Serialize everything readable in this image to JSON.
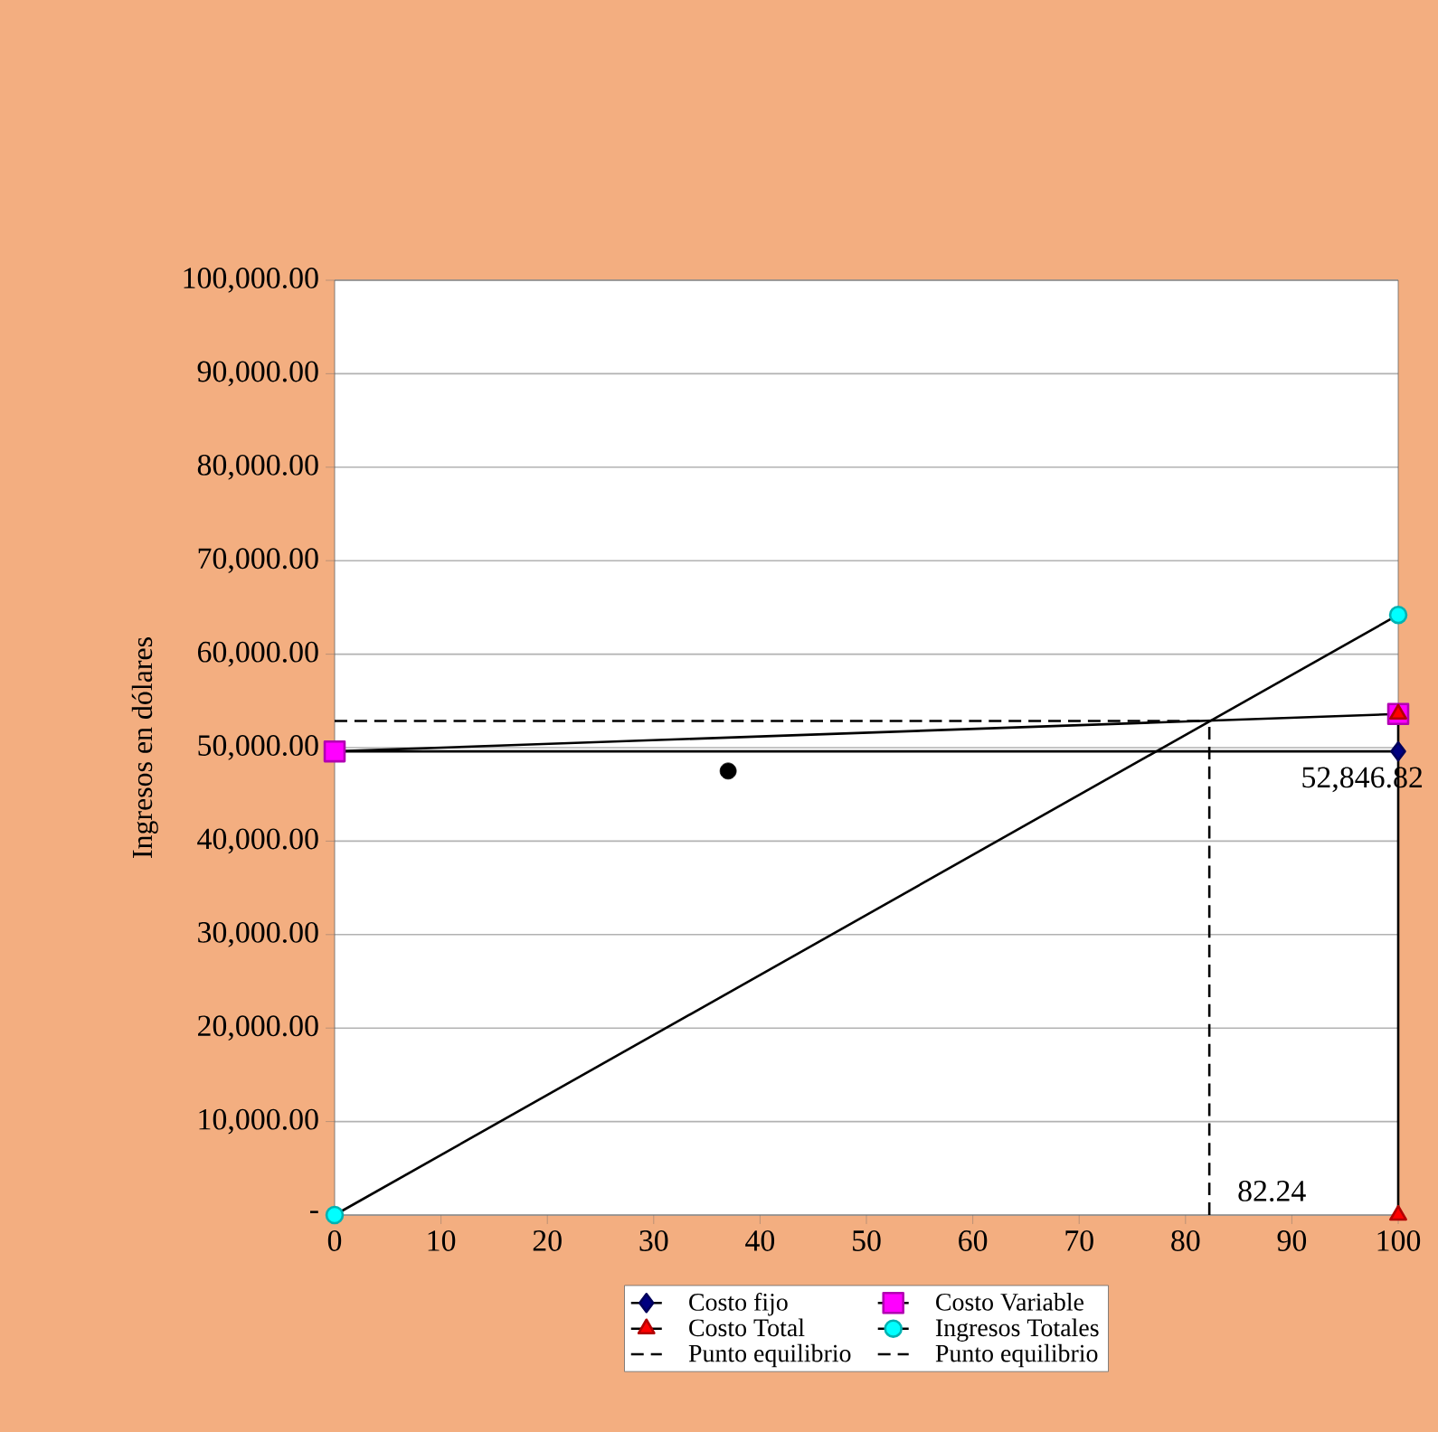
{
  "chart_data": {
    "type": "line",
    "ylabel": "Ingresos en dólares",
    "xlim": [
      0,
      100
    ],
    "xticks": [
      0,
      10,
      20,
      30,
      40,
      50,
      60,
      70,
      80,
      90,
      100
    ],
    "ylim": [
      0,
      100000
    ],
    "yticks": [
      {
        "value": 0,
        "label": "-"
      },
      {
        "value": 10000,
        "label": "10,000.00"
      },
      {
        "value": 20000,
        "label": "20,000.00"
      },
      {
        "value": 30000,
        "label": "30,000.00"
      },
      {
        "value": 40000,
        "label": "40,000.00"
      },
      {
        "value": 50000,
        "label": "50,000.00"
      },
      {
        "value": 60000,
        "label": "60,000.00"
      },
      {
        "value": 70000,
        "label": "70,000.00"
      },
      {
        "value": 80000,
        "label": "80,000.00"
      },
      {
        "value": 90000,
        "label": "90,000.00"
      },
      {
        "value": 100000,
        "label": "100,000.00"
      }
    ],
    "grid": "y",
    "legend": "bottom",
    "series": [
      {
        "name": "Costo fijo",
        "color": "#000080",
        "marker": "diamond",
        "x": [
          0,
          100
        ],
        "values": [
          49600,
          49600
        ]
      },
      {
        "name": "Costo Variable",
        "color": "#ff00ff",
        "marker": "square",
        "x": [
          0,
          100
        ],
        "values": [
          49600,
          53600
        ]
      },
      {
        "name": "Costo Total",
        "color": "#ff0000",
        "marker": "triangle",
        "x": [
          100,
          100
        ],
        "values": [
          0,
          53600
        ]
      },
      {
        "name": "Ingresos Totales",
        "color": "#00ffff",
        "marker": "circle",
        "x": [
          0,
          100
        ],
        "values": [
          0,
          64200
        ]
      },
      {
        "name": "Punto equilibrio",
        "color": "#000000",
        "marker": "none",
        "line_style": "dashed",
        "x": [
          0,
          82.24
        ],
        "values": [
          52846.82,
          52846.82
        ]
      },
      {
        "name": "Punto equilibrio",
        "color": "#000000",
        "marker": "none",
        "line_style": "dashed",
        "x": [
          82.24,
          82.24
        ],
        "values": [
          0,
          52846.82
        ]
      },
      {
        "type": "scatter",
        "color": "#000000",
        "marker": "circle",
        "x": [
          37
        ],
        "values": [
          47500
        ]
      }
    ],
    "annotations": [
      {
        "text": "52,846.82",
        "x": 100,
        "y": 52846.82
      },
      {
        "text": "82.24",
        "x": 82.24,
        "y": 0
      }
    ]
  }
}
